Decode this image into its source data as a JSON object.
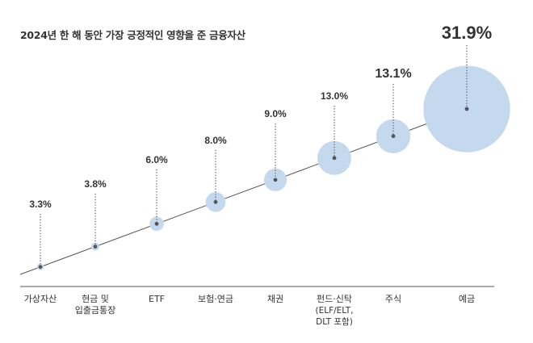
{
  "title": "2024년 한 해 동안 가장 긍정적인 영향을 준 금융자산",
  "chart_data": {
    "type": "bubble",
    "title": "2024년 한 해 동안 가장 긍정적인 영향을 준 금융자산",
    "unit": "%",
    "categories": [
      [
        "가상자산"
      ],
      [
        "현금 및",
        "입출금통장"
      ],
      [
        "ETF"
      ],
      [
        "보험·연금"
      ],
      [
        "채권"
      ],
      [
        "펀드·신탁",
        "(ELF/ELT,",
        "DLT 포함)"
      ],
      [
        "주식"
      ],
      [
        "예금"
      ]
    ],
    "values": [
      3.3,
      3.8,
      6.0,
      8.0,
      9.0,
      13.0,
      13.1,
      31.9
    ],
    "labels": [
      "3.3%",
      "3.8%",
      "6.0%",
      "8.0%",
      "9.0%",
      "13.0%",
      "13.1%",
      "31.9%"
    ],
    "colors": {
      "bubble": "#c5d9ee",
      "line": "#555555",
      "text": "#333333",
      "dot": "#555555"
    }
  }
}
